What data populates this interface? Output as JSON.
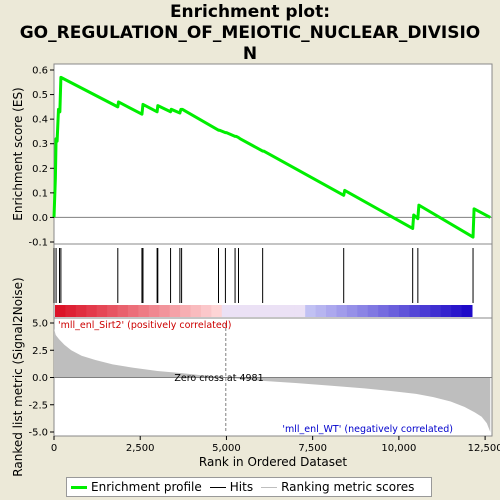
{
  "title_line1": "Enrichment plot:",
  "title_line2": "GO_REGULATION_OF_MEIOTIC_NUCLEAR_DIVISIO",
  "title_line3": "N",
  "colors": {
    "enrichment": "#00ee00",
    "hits": "#000000",
    "metric_fill": "#bebebe",
    "zero_line": "#808080",
    "pos_text": "#cc0000",
    "neg_text": "#0000cc"
  },
  "legend": {
    "enrichment": "Enrichment profile",
    "hits": "Hits",
    "metric": "Ranking metric scores"
  },
  "chart_data": {
    "type": "line",
    "es_panel": {
      "ylabel": "Enrichment score (ES)",
      "ylim": [
        -0.1,
        0.6
      ],
      "yticks": [
        "-0.1",
        "0.0",
        "0.1",
        "0.2",
        "0.3",
        "0.4",
        "0.5",
        "0.6"
      ],
      "grid": false,
      "series": [
        {
          "name": "Enrichment profile",
          "x": [
            0,
            40,
            60,
            90,
            130,
            170,
            200,
            1850,
            1870,
            2550,
            2580,
            2990,
            3010,
            3380,
            3400,
            3650,
            3680,
            3720,
            4770,
            4800,
            4970,
            5000,
            5250,
            5280,
            5350,
            5400,
            6050,
            6080,
            8400,
            8430,
            10400,
            10430,
            10550,
            10580,
            12150,
            12180,
            12650
          ],
          "y": [
            0.0,
            0.16,
            0.32,
            0.31,
            0.44,
            0.43,
            0.57,
            0.45,
            0.47,
            0.42,
            0.46,
            0.43,
            0.455,
            0.43,
            0.44,
            0.425,
            0.44,
            0.44,
            0.355,
            0.355,
            0.345,
            0.345,
            0.33,
            0.33,
            0.325,
            0.32,
            0.27,
            0.27,
            0.09,
            0.11,
            -0.045,
            0.01,
            -0.005,
            0.05,
            -0.08,
            0.035,
            0.0
          ]
        }
      ]
    },
    "hits": [
      0,
      60,
      160,
      200,
      1850,
      2550,
      2580,
      2990,
      3010,
      3380,
      3650,
      3700,
      4770,
      4970,
      5250,
      5350,
      6050,
      8400,
      10400,
      10550,
      12150
    ],
    "metric_panel": {
      "ylabel": "Ranked list metric (Signal2Noise)",
      "ylim": [
        -5.0,
        5.0
      ],
      "yticks": [
        "-5.0",
        "-2.5",
        "0.0",
        "2.5",
        "5.0"
      ],
      "xlabel": "Rank in Ordered Dataset",
      "xlim": [
        0,
        12700
      ],
      "xticks": [
        "0",
        "2,500",
        "5,000",
        "7,500",
        "10,000",
        "12,500"
      ],
      "zero_cross": 4981,
      "zero_cross_label": "Zero cross at 4981",
      "pos_label": "'mll_enl_Sirt2' (positively correlated)",
      "neg_label": "'mll_enl_WT' (negatively correlated)",
      "curve_x": [
        0,
        50,
        150,
        300,
        500,
        800,
        1200,
        1700,
        2300,
        3000,
        3700,
        4300,
        4981,
        6000,
        7000,
        8000,
        9000,
        9800,
        10500,
        11000,
        11500,
        11900,
        12200,
        12400,
        12550,
        12650
      ],
      "curve_y": [
        4.5,
        3.9,
        3.5,
        3.0,
        2.5,
        2.0,
        1.6,
        1.2,
        0.9,
        0.6,
        0.4,
        0.2,
        0.0,
        -0.3,
        -0.5,
        -0.75,
        -1.0,
        -1.25,
        -1.5,
        -1.8,
        -2.2,
        -2.7,
        -3.2,
        -3.6,
        -4.2,
        -5.0
      ]
    }
  }
}
